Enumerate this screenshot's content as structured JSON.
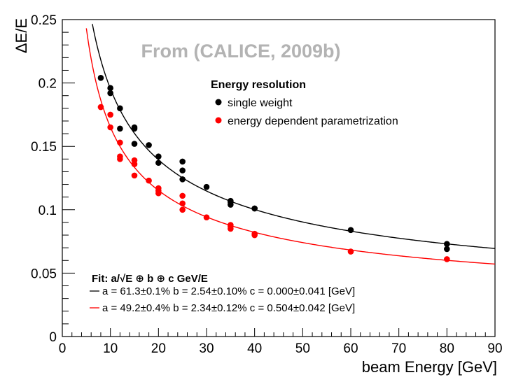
{
  "chart_data": {
    "type": "scatter",
    "title": "",
    "watermark": "From (CALICE, 2009b)",
    "xlabel": "beam Energy [GeV]",
    "ylabel": "ΔE/E",
    "xlim": [
      0,
      90
    ],
    "ylim": [
      0,
      0.25
    ],
    "x_ticks": [
      0,
      10,
      20,
      30,
      40,
      50,
      60,
      70,
      80,
      90
    ],
    "y_ticks": [
      0,
      0.05,
      0.1,
      0.15,
      0.2,
      0.25
    ],
    "y_tick_labels": [
      "0",
      "0.05",
      "0.1",
      "0.15",
      "0.2",
      "0.25"
    ],
    "legend": {
      "title": "Energy resolution",
      "position": "top-right"
    },
    "series": [
      {
        "name": "single weight",
        "color": "#000000",
        "points": [
          [
            8,
            0.204
          ],
          [
            10,
            0.196
          ],
          [
            10,
            0.192
          ],
          [
            12,
            0.18
          ],
          [
            12,
            0.164
          ],
          [
            15,
            0.165
          ],
          [
            15,
            0.164
          ],
          [
            15,
            0.152
          ],
          [
            18,
            0.151
          ],
          [
            20,
            0.142
          ],
          [
            20,
            0.137
          ],
          [
            25,
            0.138
          ],
          [
            25,
            0.131
          ],
          [
            25,
            0.124
          ],
          [
            30,
            0.118
          ],
          [
            35,
            0.107
          ],
          [
            35,
            0.106
          ],
          [
            35,
            0.104
          ],
          [
            40,
            0.101
          ],
          [
            40,
            0.101
          ],
          [
            60,
            0.084
          ],
          [
            80,
            0.073
          ],
          [
            80,
            0.069
          ]
        ],
        "fit": {
          "a": 0.613,
          "b": 0.0254,
          "c": 0.0
        }
      },
      {
        "name": "energy dependent parametrization",
        "color": "#ff0000",
        "points": [
          [
            8,
            0.181
          ],
          [
            10,
            0.175
          ],
          [
            10,
            0.165
          ],
          [
            12,
            0.153
          ],
          [
            12,
            0.142
          ],
          [
            12,
            0.14
          ],
          [
            15,
            0.139
          ],
          [
            15,
            0.136
          ],
          [
            15,
            0.127
          ],
          [
            18,
            0.123
          ],
          [
            20,
            0.117
          ],
          [
            20,
            0.115
          ],
          [
            20,
            0.113
          ],
          [
            25,
            0.111
          ],
          [
            25,
            0.105
          ],
          [
            25,
            0.1
          ],
          [
            30,
            0.094
          ],
          [
            35,
            0.088
          ],
          [
            35,
            0.087
          ],
          [
            35,
            0.085
          ],
          [
            40,
            0.081
          ],
          [
            40,
            0.08
          ],
          [
            60,
            0.067
          ],
          [
            80,
            0.061
          ]
        ],
        "fit": {
          "a": 0.492,
          "b": 0.0234,
          "c": 0.504
        }
      }
    ],
    "fit_box": {
      "title": "Fit: a/√E ⊕ b ⊕ c GeV/E",
      "lines": [
        {
          "color": "#000000",
          "text": "a = 61.3±0.1%  b = 2.54±0.10% c = 0.000±0.041 [GeV]"
        },
        {
          "color": "#ff0000",
          "text": "a = 49.2±0.4%  b = 2.34±0.12% c = 0.504±0.042 [GeV]"
        }
      ]
    }
  }
}
